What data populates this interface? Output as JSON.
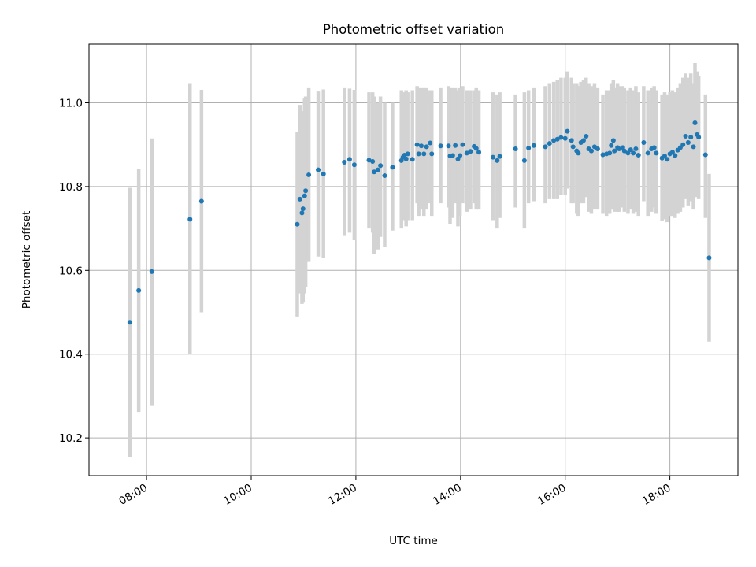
{
  "chart_data": {
    "type": "scatter",
    "title": "Photometric offset variation",
    "xlabel": "UTC time",
    "ylabel": "Photometric offset",
    "x_unit": "hours UTC",
    "xlim": [
      6.9,
      19.3
    ],
    "ylim": [
      10.11,
      11.14
    ],
    "x_ticks": [
      {
        "value": 8,
        "label": "08:00"
      },
      {
        "value": 10,
        "label": "10:00"
      },
      {
        "value": 12,
        "label": "12:00"
      },
      {
        "value": 14,
        "label": "14:00"
      },
      {
        "value": 16,
        "label": "16:00"
      },
      {
        "value": 18,
        "label": "18:00"
      }
    ],
    "y_ticks": [
      {
        "value": 10.2,
        "label": "10.2"
      },
      {
        "value": 10.4,
        "label": "10.4"
      },
      {
        "value": 10.6,
        "label": "10.6"
      },
      {
        "value": 10.8,
        "label": "10.8"
      },
      {
        "value": 11.0,
        "label": "11.0"
      }
    ],
    "grid": true,
    "colors": {
      "marker": "#1f77b4",
      "errorbar": "#d3d3d3",
      "grid": "#b0b0b0"
    },
    "points": [
      [
        7.68,
        10.476,
        10.155,
        10.797
      ],
      [
        7.85,
        10.552,
        10.262,
        10.842
      ],
      [
        8.1,
        10.597,
        10.278,
        10.915
      ],
      [
        8.83,
        10.722,
        10.401,
        11.045
      ],
      [
        9.05,
        10.765,
        10.5,
        11.031
      ],
      [
        10.88,
        10.71,
        10.49,
        10.93
      ],
      [
        10.93,
        10.77,
        10.545,
        10.995
      ],
      [
        10.97,
        10.737,
        10.52,
        10.96
      ],
      [
        10.99,
        10.747,
        10.523,
        10.98
      ],
      [
        11.02,
        10.778,
        10.545,
        11.01
      ],
      [
        11.04,
        10.79,
        10.56,
        11.015
      ],
      [
        11.1,
        10.828,
        10.62,
        11.035
      ],
      [
        11.28,
        10.84,
        10.633,
        11.027
      ],
      [
        11.38,
        10.83,
        10.63,
        11.032
      ],
      [
        11.78,
        10.858,
        10.682,
        11.035
      ],
      [
        11.88,
        10.865,
        10.69,
        11.034
      ],
      [
        11.97,
        10.852,
        10.672,
        11.031
      ],
      [
        12.25,
        10.863,
        10.7,
        11.025
      ],
      [
        12.32,
        10.86,
        10.69,
        11.025
      ],
      [
        12.35,
        10.835,
        10.64,
        11.015
      ],
      [
        12.42,
        10.84,
        10.65,
        11.0
      ],
      [
        12.47,
        10.85,
        10.68,
        11.015
      ],
      [
        12.55,
        10.826,
        10.655,
        11.0
      ],
      [
        12.7,
        10.846,
        10.695,
        11.0
      ],
      [
        12.87,
        10.862,
        10.7,
        11.03
      ],
      [
        12.9,
        10.87,
        10.72,
        11.02
      ],
      [
        12.93,
        10.875,
        10.72,
        11.025
      ],
      [
        12.96,
        10.866,
        10.705,
        11.03
      ],
      [
        12.99,
        10.878,
        10.72,
        11.025
      ],
      [
        13.08,
        10.865,
        10.72,
        11.03
      ],
      [
        13.17,
        10.9,
        10.76,
        11.04
      ],
      [
        13.2,
        10.878,
        10.73,
        11.035
      ],
      [
        13.25,
        10.897,
        10.745,
        11.035
      ],
      [
        13.3,
        10.878,
        10.73,
        11.035
      ],
      [
        13.35,
        10.895,
        10.745,
        11.035
      ],
      [
        13.42,
        10.904,
        10.76,
        11.03
      ],
      [
        13.45,
        10.878,
        10.73,
        11.03
      ],
      [
        13.62,
        10.897,
        10.76,
        11.035
      ],
      [
        13.77,
        10.897,
        10.75,
        11.04
      ],
      [
        13.8,
        10.873,
        10.71,
        11.035
      ],
      [
        13.85,
        10.874,
        10.725,
        11.035
      ],
      [
        13.9,
        10.898,
        10.76,
        11.035
      ],
      [
        13.95,
        10.866,
        10.705,
        11.03
      ],
      [
        13.99,
        10.874,
        10.73,
        11.035
      ],
      [
        14.04,
        10.9,
        10.76,
        11.04
      ],
      [
        14.12,
        10.88,
        10.74,
        11.03
      ],
      [
        14.19,
        10.884,
        10.745,
        11.03
      ],
      [
        14.26,
        10.896,
        10.76,
        11.03
      ],
      [
        14.3,
        10.891,
        10.745,
        11.035
      ],
      [
        14.35,
        10.882,
        10.745,
        11.03
      ],
      [
        14.62,
        10.87,
        10.72,
        11.025
      ],
      [
        14.7,
        10.862,
        10.7,
        11.02
      ],
      [
        14.75,
        10.872,
        10.725,
        11.025
      ],
      [
        15.05,
        10.89,
        10.75,
        11.02
      ],
      [
        15.22,
        10.862,
        10.7,
        11.025
      ],
      [
        15.3,
        10.892,
        10.76,
        11.03
      ],
      [
        15.4,
        10.898,
        10.765,
        11.035
      ],
      [
        15.62,
        10.895,
        10.76,
        11.04
      ],
      [
        15.7,
        10.903,
        10.77,
        11.045
      ],
      [
        15.78,
        10.91,
        10.77,
        11.05
      ],
      [
        15.85,
        10.913,
        10.77,
        11.055
      ],
      [
        15.92,
        10.917,
        10.78,
        11.06
      ],
      [
        16.0,
        10.915,
        10.78,
        11.06
      ],
      [
        16.04,
        10.932,
        10.795,
        11.075
      ],
      [
        16.12,
        10.91,
        10.76,
        11.06
      ],
      [
        16.15,
        10.895,
        10.76,
        11.045
      ],
      [
        16.22,
        10.885,
        10.735,
        11.045
      ],
      [
        16.25,
        10.88,
        10.73,
        11.04
      ],
      [
        16.3,
        10.905,
        10.76,
        11.05
      ],
      [
        16.35,
        10.91,
        10.76,
        11.055
      ],
      [
        16.4,
        10.92,
        10.775,
        11.06
      ],
      [
        16.45,
        10.89,
        10.74,
        11.045
      ],
      [
        16.5,
        10.885,
        10.735,
        11.04
      ],
      [
        16.56,
        10.895,
        10.745,
        11.045
      ],
      [
        16.62,
        10.89,
        10.745,
        11.035
      ],
      [
        16.72,
        10.876,
        10.735,
        11.02
      ],
      [
        16.79,
        10.878,
        10.73,
        11.03
      ],
      [
        16.85,
        10.88,
        10.735,
        11.03
      ],
      [
        16.88,
        10.898,
        10.745,
        11.045
      ],
      [
        16.92,
        10.91,
        10.77,
        11.055
      ],
      [
        16.94,
        10.885,
        10.74,
        11.035
      ],
      [
        17.0,
        10.893,
        10.74,
        11.045
      ],
      [
        17.03,
        10.89,
        10.74,
        11.04
      ],
      [
        17.1,
        10.893,
        10.75,
        11.04
      ],
      [
        17.13,
        10.885,
        10.74,
        11.035
      ],
      [
        17.2,
        10.88,
        10.735,
        11.03
      ],
      [
        17.25,
        10.888,
        10.745,
        11.035
      ],
      [
        17.3,
        10.88,
        10.735,
        11.03
      ],
      [
        17.35,
        10.89,
        10.74,
        11.04
      ],
      [
        17.4,
        10.875,
        10.73,
        11.025
      ],
      [
        17.5,
        10.905,
        10.765,
        11.04
      ],
      [
        17.58,
        10.88,
        10.73,
        11.03
      ],
      [
        17.65,
        10.89,
        10.74,
        11.035
      ],
      [
        17.7,
        10.893,
        10.75,
        11.04
      ],
      [
        17.74,
        10.88,
        10.735,
        11.03
      ],
      [
        17.85,
        10.868,
        10.718,
        11.02
      ],
      [
        17.9,
        10.873,
        10.722,
        11.025
      ],
      [
        17.95,
        10.865,
        10.715,
        11.02
      ],
      [
        18.0,
        10.878,
        10.73,
        11.025
      ],
      [
        18.05,
        10.882,
        10.73,
        11.03
      ],
      [
        18.1,
        10.874,
        10.725,
        11.025
      ],
      [
        18.15,
        10.887,
        10.735,
        11.035
      ],
      [
        18.2,
        10.893,
        10.74,
        11.045
      ],
      [
        18.25,
        10.9,
        10.75,
        11.06
      ],
      [
        18.3,
        10.92,
        10.77,
        11.07
      ],
      [
        18.35,
        10.905,
        10.755,
        11.06
      ],
      [
        18.4,
        10.918,
        10.765,
        11.07
      ],
      [
        18.45,
        10.895,
        10.745,
        11.045
      ],
      [
        18.48,
        10.952,
        10.8,
        11.095
      ],
      [
        18.52,
        10.924,
        10.775,
        11.075
      ],
      [
        18.55,
        10.918,
        10.77,
        11.065
      ],
      [
        18.68,
        10.876,
        10.725,
        11.02
      ],
      [
        18.75,
        10.63,
        10.43,
        10.83
      ]
    ]
  }
}
